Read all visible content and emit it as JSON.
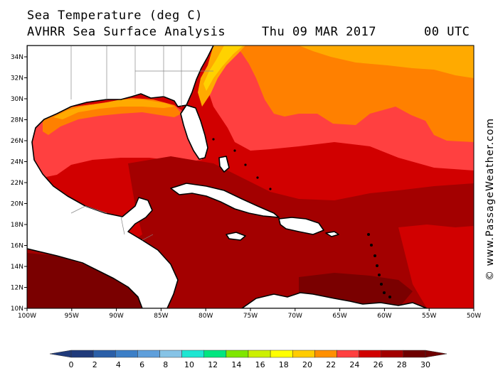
{
  "header": {
    "title": "Sea Temperature (deg C)",
    "subtitle": "AVHRR Sea Surface Analysis",
    "date": "Thu 09 MAR 2017",
    "time": "00 UTC"
  },
  "credit": "© www.PassageWeather.com",
  "map": {
    "lon_range": [
      -100,
      -50
    ],
    "lat_range": [
      10,
      35
    ],
    "lat_ticks": [
      "10N",
      "12N",
      "14N",
      "16N",
      "18N",
      "20N",
      "22N",
      "24N",
      "26N",
      "28N",
      "30N",
      "32N",
      "34N"
    ],
    "lon_ticks": [
      "100W",
      "95W",
      "90W",
      "85W",
      "80W",
      "75W",
      "70W",
      "65W",
      "60W",
      "55W",
      "50W"
    ],
    "land_color": "#ffffff",
    "sea_colors": {
      "warmest": "#7a0000",
      "very_warm": "#a30000",
      "warm": "#d10000",
      "mid": "#ff4040",
      "mild": "#ff8000",
      "cool": "#ffaa00",
      "cooler": "#ffd200"
    }
  },
  "colorbar": {
    "labels": [
      "0",
      "2",
      "4",
      "6",
      "8",
      "10",
      "12",
      "14",
      "16",
      "18",
      "20",
      "22",
      "24",
      "26",
      "28",
      "30"
    ],
    "colors": [
      "#1f3a7a",
      "#2a5fa8",
      "#3c7fc7",
      "#5f9fdb",
      "#86c3e6",
      "#1de6d2",
      "#00e680",
      "#80e600",
      "#ccf000",
      "#ffff00",
      "#ffcc00",
      "#ff9000",
      "#ff4040",
      "#d10000",
      "#a30000",
      "#6e0000"
    ]
  }
}
